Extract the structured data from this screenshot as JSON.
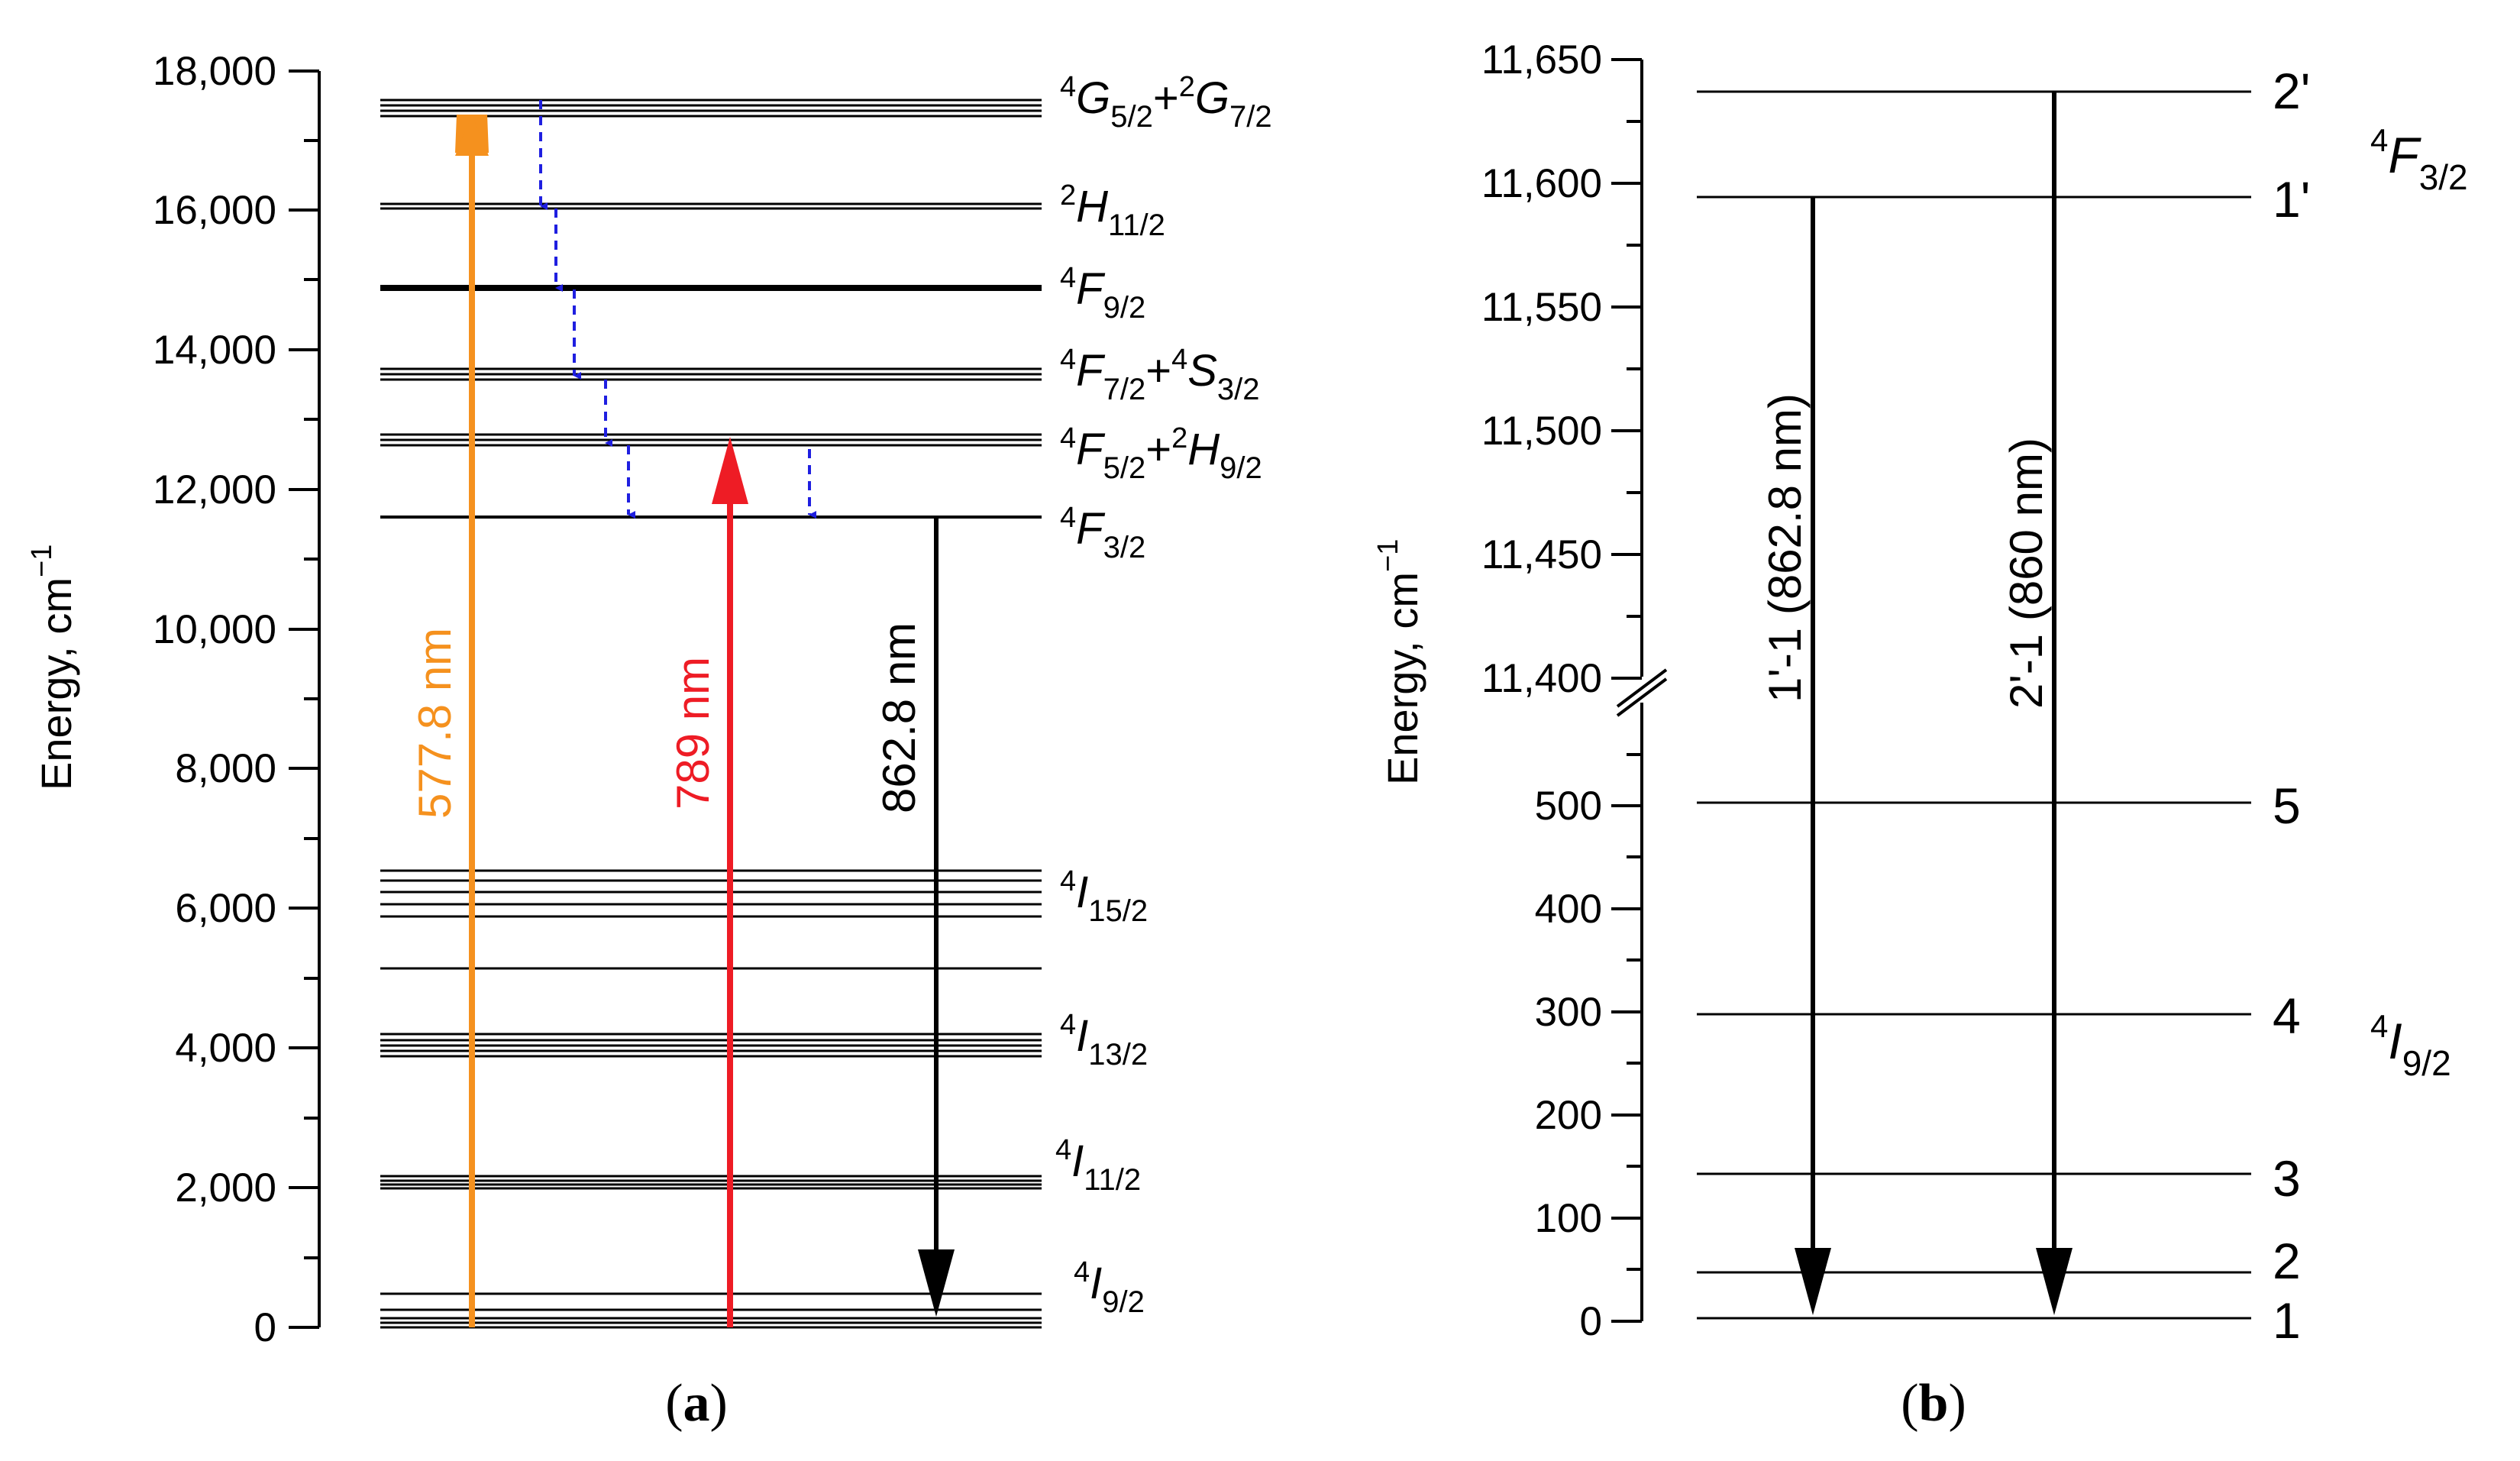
{
  "panel_a": {
    "ylabel": "Energy, cm",
    "ylabel_sup": "−1",
    "y_ticks": [
      "0",
      "2,000",
      "4,000",
      "6,000",
      "8,000",
      "10,000",
      "12,000",
      "14,000",
      "16,000",
      "18,000"
    ],
    "terms": {
      "G52_G72": {
        "p1": "4",
        "l1": "G",
        "s1": "5/2",
        "plus": "+",
        "p2": "2",
        "l2": "G",
        "s2": "7/2"
      },
      "H112": {
        "p1": "2",
        "l1": "H",
        "s1": "11/2"
      },
      "F92": {
        "p1": "4",
        "l1": "F",
        "s1": "9/2"
      },
      "F72_S32": {
        "p1": "4",
        "l1": "F",
        "s1": "7/2",
        "plus": "+",
        "p2": "4",
        "l2": "S",
        "s2": "3/2"
      },
      "F52_H92": {
        "p1": "4",
        "l1": "F",
        "s1": "5/2",
        "plus": "+",
        "p2": "2",
        "l2": "H",
        "s2": "9/2"
      },
      "F32": {
        "p1": "4",
        "l1": "F",
        "s1": "3/2"
      },
      "I152": {
        "p1": "4",
        "l1": "I",
        "s1": "15/2"
      },
      "I132": {
        "p1": "4",
        "l1": "I",
        "s1": "13/2"
      },
      "I112": {
        "p1": "4",
        "l1": "I",
        "s1": "11/2"
      },
      "I92": {
        "p1": "4",
        "l1": "I",
        "s1": "9/2"
      }
    },
    "arrows": {
      "orange_label": "577.8 nm",
      "red_label": "789 nm",
      "black_label": "862.8 nm"
    },
    "colors": {
      "orange": "#f5911e",
      "red": "#ee1c25",
      "blue": "#1f1fe0",
      "black": "#000000"
    },
    "caption_open": "(",
    "caption_letter": "a",
    "caption_close": ")"
  },
  "panel_b": {
    "ylabel": "Energy, cm",
    "ylabel_sup": "−1",
    "y_ticks_upper": [
      "11,400",
      "11,450",
      "11,500",
      "11,550",
      "11,600",
      "11,650"
    ],
    "y_ticks_lower": [
      "0",
      "100",
      "200",
      "300",
      "400",
      "500"
    ],
    "level_numbers": [
      "2'",
      "1'",
      "5",
      "4",
      "3",
      "2",
      "1"
    ],
    "terms": {
      "F32": {
        "p1": "4",
        "l1": "F",
        "s1": "3/2"
      },
      "I92": {
        "p1": "4",
        "l1": "I",
        "s1": "9/2"
      }
    },
    "arrows": {
      "left_label": "1'-1 (862.8 nm)",
      "right_label": "2'-1 (860 nm)"
    },
    "caption_open": "(",
    "caption_letter": "b",
    "caption_close": ")"
  }
}
